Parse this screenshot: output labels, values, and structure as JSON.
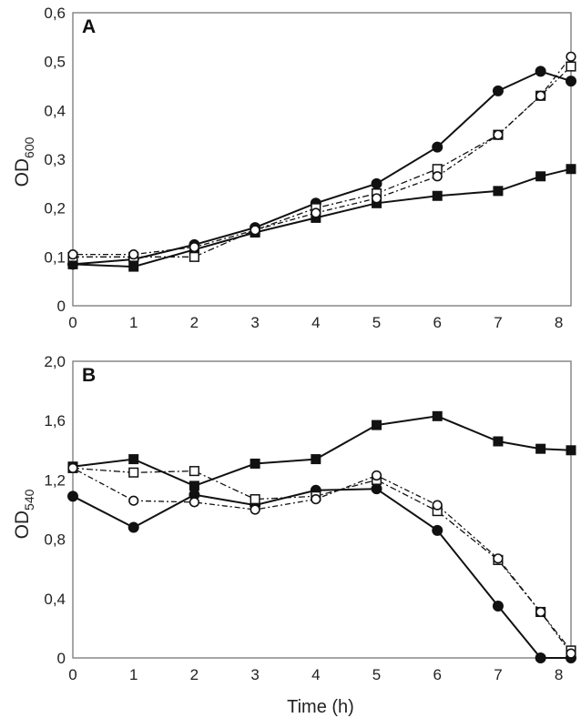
{
  "chart_data": [
    {
      "type": "line",
      "panel_label": "A",
      "ylabel_main": "OD",
      "ylabel_sub": "600",
      "xlabel": "",
      "xlim": [
        0,
        8.2
      ],
      "ylim": [
        0,
        0.6
      ],
      "xticks": [
        "0",
        "1",
        "2",
        "3",
        "4",
        "5",
        "6",
        "7",
        "8"
      ],
      "yticks": [
        "0",
        "0,1",
        "0,2",
        "0,3",
        "0,4",
        "0,5",
        "0,6"
      ],
      "grid": false,
      "series": [
        {
          "marker": "filled-circle",
          "line": "solid",
          "x": [
            0,
            1,
            2,
            3,
            4,
            5,
            6,
            7,
            7.7,
            8.2
          ],
          "y": [
            0.085,
            0.095,
            0.125,
            0.16,
            0.21,
            0.25,
            0.325,
            0.44,
            0.48,
            0.46
          ]
        },
        {
          "marker": "filled-square",
          "line": "solid",
          "x": [
            0,
            1,
            2,
            3,
            4,
            5,
            6,
            7,
            7.7,
            8.2
          ],
          "y": [
            0.085,
            0.08,
            0.115,
            0.15,
            0.18,
            0.21,
            0.225,
            0.235,
            0.265,
            0.28
          ]
        },
        {
          "marker": "open-square",
          "line": "dashdot",
          "x": [
            0,
            1,
            2,
            3,
            4,
            5,
            6,
            7,
            7.7,
            8.2
          ],
          "y": [
            0.1,
            0.1,
            0.1,
            0.155,
            0.2,
            0.23,
            0.28,
            0.35,
            0.43,
            0.49
          ]
        },
        {
          "marker": "open-circle",
          "line": "dotdash",
          "x": [
            0,
            1,
            2,
            3,
            4,
            5,
            6,
            7,
            7.7,
            8.2
          ],
          "y": [
            0.105,
            0.105,
            0.12,
            0.155,
            0.19,
            0.22,
            0.265,
            0.35,
            0.43,
            0.51
          ]
        }
      ]
    },
    {
      "type": "line",
      "panel_label": "B",
      "ylabel_main": "OD",
      "ylabel_sub": "540",
      "xlabel": "Time (h)",
      "xlim": [
        0,
        8.2
      ],
      "ylim": [
        0,
        2.0
      ],
      "xticks": [
        "0",
        "1",
        "2",
        "3",
        "4",
        "5",
        "6",
        "7",
        "8"
      ],
      "yticks": [
        "0",
        "0,4",
        "0,8",
        "1,2",
        "1,6",
        "2,0"
      ],
      "grid": false,
      "series": [
        {
          "marker": "filled-square",
          "line": "solid",
          "x": [
            0,
            1,
            2,
            3,
            4,
            5,
            6,
            7,
            7.7,
            8.2
          ],
          "y": [
            1.29,
            1.34,
            1.16,
            1.31,
            1.34,
            1.57,
            1.63,
            1.46,
            1.41,
            1.4
          ]
        },
        {
          "marker": "filled-circle",
          "line": "solid",
          "x": [
            0,
            1,
            2,
            3,
            4,
            5,
            6,
            7,
            7.7,
            8.2
          ],
          "y": [
            1.09,
            0.88,
            1.1,
            1.03,
            1.13,
            1.14,
            0.86,
            0.35,
            0.0,
            0.0
          ]
        },
        {
          "marker": "open-square",
          "line": "dashdot",
          "x": [
            0,
            1,
            2,
            3,
            4,
            5,
            6,
            7,
            7.7,
            8.2
          ],
          "y": [
            1.28,
            1.25,
            1.26,
            1.07,
            1.09,
            1.2,
            0.99,
            0.66,
            0.31,
            0.05
          ]
        },
        {
          "marker": "open-circle",
          "line": "dotdash",
          "x": [
            0,
            1,
            2,
            3,
            4,
            5,
            6,
            7,
            7.7,
            8.2
          ],
          "y": [
            1.28,
            1.06,
            1.05,
            1.0,
            1.07,
            1.23,
            1.03,
            0.67,
            0.31,
            0.03
          ]
        }
      ]
    }
  ]
}
